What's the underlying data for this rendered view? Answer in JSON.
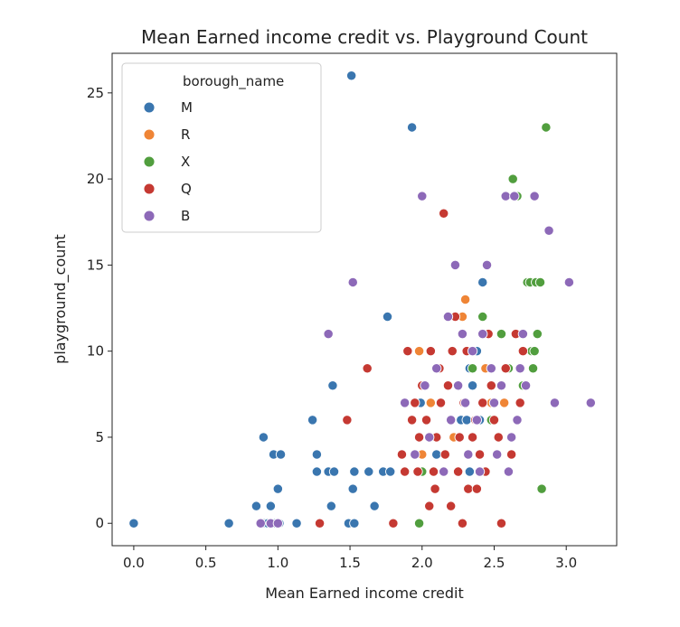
{
  "chart_data": {
    "type": "scatter",
    "title": "Mean Earned income credit vs. Playground Count",
    "xlabel": "Mean Earned income credit",
    "ylabel": "playground_count",
    "xlim": [
      -0.15,
      3.35
    ],
    "ylim": [
      -1.3,
      27.3
    ],
    "x_ticks": [
      "0.0",
      "0.5",
      "1.0",
      "1.5",
      "2.0",
      "2.5",
      "3.0"
    ],
    "y_ticks": [
      "0",
      "5",
      "10",
      "15",
      "20",
      "25"
    ],
    "grid": false,
    "legend": {
      "title": "borough_name",
      "placement": "top-left",
      "entries": [
        "M",
        "R",
        "X",
        "Q",
        "B"
      ]
    },
    "colors": {
      "M": "#3a76af",
      "R": "#ef8536",
      "X": "#519e3e",
      "Q": "#c53932",
      "B": "#8d69b8"
    },
    "series": [
      {
        "name": "M",
        "points": [
          [
            0.0,
            0
          ],
          [
            0.66,
            0
          ],
          [
            0.85,
            1
          ],
          [
            0.9,
            5
          ],
          [
            0.9,
            0
          ],
          [
            0.93,
            0
          ],
          [
            0.95,
            1
          ],
          [
            0.97,
            4
          ],
          [
            0.98,
            0
          ],
          [
            1.0,
            2
          ],
          [
            1.01,
            0
          ],
          [
            1.02,
            4
          ],
          [
            1.13,
            0
          ],
          [
            1.24,
            6
          ],
          [
            1.27,
            4
          ],
          [
            1.27,
            3
          ],
          [
            1.35,
            3
          ],
          [
            1.37,
            1
          ],
          [
            1.38,
            8
          ],
          [
            1.39,
            3
          ],
          [
            1.49,
            0
          ],
          [
            1.51,
            26
          ],
          [
            1.52,
            2
          ],
          [
            1.53,
            3
          ],
          [
            1.53,
            0
          ],
          [
            1.63,
            3
          ],
          [
            1.67,
            1
          ],
          [
            1.73,
            3
          ],
          [
            1.76,
            12
          ],
          [
            1.78,
            3
          ],
          [
            1.93,
            23
          ],
          [
            1.99,
            7
          ],
          [
            2.1,
            4
          ],
          [
            2.27,
            6
          ],
          [
            2.31,
            6
          ],
          [
            2.33,
            9
          ],
          [
            2.33,
            3
          ],
          [
            2.35,
            8
          ],
          [
            2.38,
            10
          ],
          [
            2.4,
            6
          ],
          [
            2.42,
            14
          ]
        ]
      },
      {
        "name": "R",
        "points": [
          [
            1.98,
            10
          ],
          [
            2.06,
            7
          ],
          [
            2.28,
            12
          ],
          [
            2.3,
            13
          ],
          [
            2.44,
            9
          ],
          [
            2.48,
            7
          ],
          [
            2.53,
            5
          ],
          [
            2.57,
            7
          ],
          [
            2.69,
            11
          ],
          [
            2.0,
            4
          ],
          [
            2.22,
            5
          ]
        ]
      },
      {
        "name": "X",
        "points": [
          [
            1.98,
            0
          ],
          [
            2.0,
            3
          ],
          [
            2.32,
            2
          ],
          [
            2.35,
            9
          ],
          [
            2.42,
            12
          ],
          [
            2.48,
            6
          ],
          [
            2.55,
            11
          ],
          [
            2.6,
            9
          ],
          [
            2.63,
            20
          ],
          [
            2.66,
            19
          ],
          [
            2.7,
            8
          ],
          [
            2.73,
            14
          ],
          [
            2.75,
            14
          ],
          [
            2.76,
            10
          ],
          [
            2.77,
            9
          ],
          [
            2.78,
            10
          ],
          [
            2.79,
            14
          ],
          [
            2.8,
            11
          ],
          [
            2.82,
            14
          ],
          [
            2.83,
            2
          ],
          [
            2.86,
            23
          ]
        ]
      },
      {
        "name": "Q",
        "points": [
          [
            1.29,
            0
          ],
          [
            1.48,
            6
          ],
          [
            1.62,
            9
          ],
          [
            1.8,
            0
          ],
          [
            1.86,
            4
          ],
          [
            1.88,
            3
          ],
          [
            1.9,
            10
          ],
          [
            1.93,
            6
          ],
          [
            1.95,
            7
          ],
          [
            1.97,
            3
          ],
          [
            1.98,
            5
          ],
          [
            2.0,
            8
          ],
          [
            2.03,
            6
          ],
          [
            2.05,
            1
          ],
          [
            2.06,
            10
          ],
          [
            2.08,
            3
          ],
          [
            2.09,
            2
          ],
          [
            2.1,
            5
          ],
          [
            2.12,
            9
          ],
          [
            2.13,
            7
          ],
          [
            2.15,
            18
          ],
          [
            2.16,
            4
          ],
          [
            2.18,
            8
          ],
          [
            2.2,
            1
          ],
          [
            2.21,
            10
          ],
          [
            2.23,
            12
          ],
          [
            2.25,
            3
          ],
          [
            2.26,
            5
          ],
          [
            2.28,
            0
          ],
          [
            2.29,
            7
          ],
          [
            2.31,
            10
          ],
          [
            2.32,
            2
          ],
          [
            2.35,
            5
          ],
          [
            2.37,
            6
          ],
          [
            2.38,
            2
          ],
          [
            2.4,
            4
          ],
          [
            2.42,
            7
          ],
          [
            2.44,
            3
          ],
          [
            2.46,
            11
          ],
          [
            2.48,
            8
          ],
          [
            2.5,
            6
          ],
          [
            2.53,
            5
          ],
          [
            2.55,
            0
          ],
          [
            2.58,
            9
          ],
          [
            2.62,
            4
          ],
          [
            2.65,
            11
          ],
          [
            2.68,
            7
          ],
          [
            2.7,
            10
          ]
        ]
      },
      {
        "name": "B",
        "points": [
          [
            0.88,
            0
          ],
          [
            0.95,
            0
          ],
          [
            1.0,
            0
          ],
          [
            1.35,
            11
          ],
          [
            1.52,
            14
          ],
          [
            1.88,
            7
          ],
          [
            1.95,
            4
          ],
          [
            2.0,
            19
          ],
          [
            2.02,
            8
          ],
          [
            2.05,
            5
          ],
          [
            2.1,
            9
          ],
          [
            2.15,
            3
          ],
          [
            2.18,
            12
          ],
          [
            2.2,
            6
          ],
          [
            2.23,
            15
          ],
          [
            2.25,
            8
          ],
          [
            2.28,
            11
          ],
          [
            2.3,
            7
          ],
          [
            2.32,
            4
          ],
          [
            2.35,
            10
          ],
          [
            2.38,
            6
          ],
          [
            2.4,
            3
          ],
          [
            2.42,
            11
          ],
          [
            2.45,
            15
          ],
          [
            2.48,
            9
          ],
          [
            2.5,
            7
          ],
          [
            2.52,
            4
          ],
          [
            2.55,
            8
          ],
          [
            2.58,
            19
          ],
          [
            2.6,
            3
          ],
          [
            2.62,
            5
          ],
          [
            2.64,
            19
          ],
          [
            2.66,
            6
          ],
          [
            2.68,
            9
          ],
          [
            2.7,
            11
          ],
          [
            2.72,
            8
          ],
          [
            2.78,
            19
          ],
          [
            2.88,
            17
          ],
          [
            2.92,
            7
          ],
          [
            3.02,
            14
          ],
          [
            3.17,
            7
          ]
        ]
      }
    ]
  }
}
